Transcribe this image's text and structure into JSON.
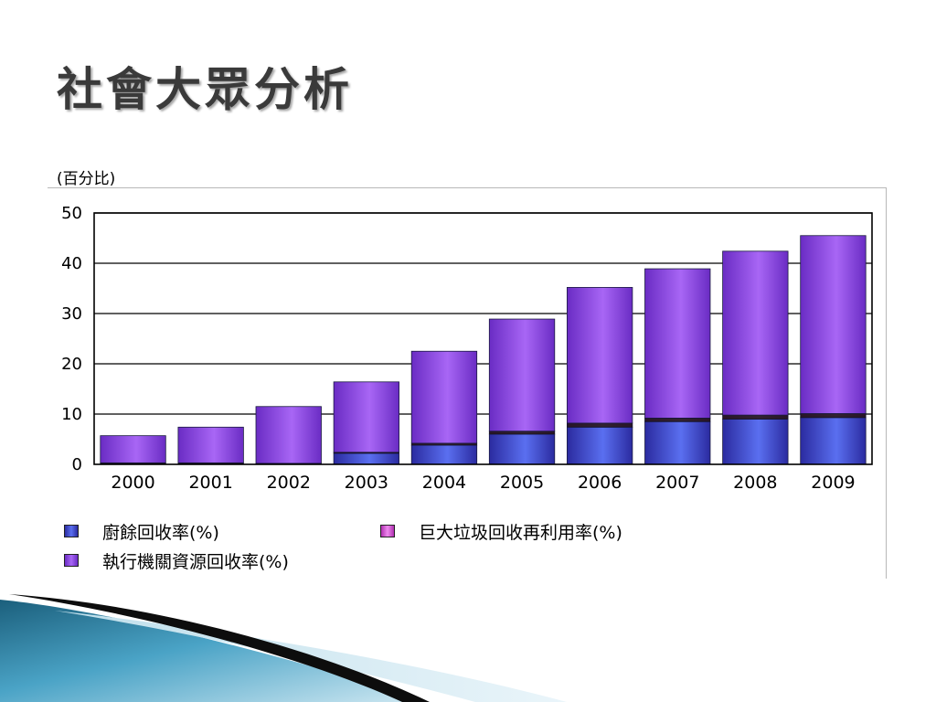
{
  "slide": {
    "title": "社會大眾分析"
  },
  "chart_data": {
    "type": "bar",
    "stacked": true,
    "y_unit_label": "(百分比)",
    "categories": [
      "2000",
      "2001",
      "2002",
      "2003",
      "2004",
      "2005",
      "2006",
      "2007",
      "2008",
      "2009"
    ],
    "series": [
      {
        "name": "廚餘回收率(%)",
        "color": "#3f3fc4",
        "values": [
          0,
          0,
          0,
          2.2,
          3.8,
          6.0,
          7.4,
          8.5,
          9.0,
          9.3
        ]
      },
      {
        "name": "巨大垃圾回收再利用率(%)",
        "color": "#d95ad9",
        "values": [
          0.3,
          0.3,
          0.2,
          0.2,
          0.4,
          0.6,
          0.8,
          0.7,
          0.8,
          0.8
        ]
      },
      {
        "name": "執行機關資源回收率(%)",
        "color": "#8a3fe0",
        "values": [
          5.4,
          7.1,
          11.3,
          14.0,
          18.3,
          22.3,
          27.0,
          29.7,
          32.6,
          35.4
        ]
      }
    ],
    "yticks": [
      0,
      10,
      20,
      30,
      40,
      50
    ],
    "ylim": [
      0,
      50
    ],
    "grid": true,
    "legend_position": "bottom"
  }
}
